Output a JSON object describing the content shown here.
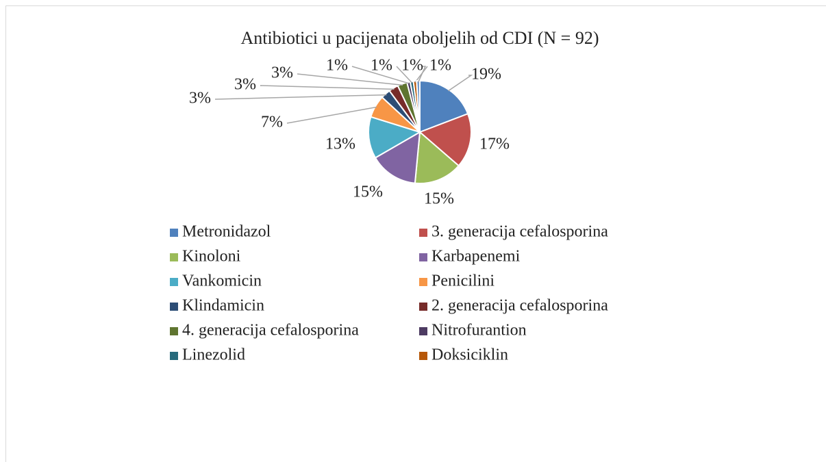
{
  "chart_data": {
    "type": "pie",
    "title": "Antibiotici u pacijenata oboljelih od CDI (N = 92)",
    "categories": [
      "Metronidazol",
      "3. generacija cefalosporina",
      "Kinoloni",
      "Karbapenemi",
      "Vankomicin",
      "Penicilini",
      "Klindamicin",
      "2. generacija cefalosporina",
      "4. generacija cefalosporina",
      "Nitrofurantion",
      "Linezolid",
      "Doksiciklin",
      null
    ],
    "values": [
      19,
      17,
      15,
      15,
      13,
      7,
      3,
      3,
      3,
      1,
      1,
      1,
      1
    ],
    "value_labels": [
      "19%",
      "17%",
      "15%",
      "15%",
      "13%",
      "7%",
      "3%",
      "3%",
      "3%",
      "1%",
      "1%",
      "1%",
      "1%"
    ],
    "colors": [
      "#4f81bd",
      "#c0504d",
      "#9bbb59",
      "#8064a2",
      "#4bacc6",
      "#f79646",
      "#2c4d75",
      "#772c2a",
      "#5f7530",
      "#4d3b62",
      "#276a7c",
      "#b65708",
      "#729aca"
    ],
    "legend": "bottom"
  }
}
